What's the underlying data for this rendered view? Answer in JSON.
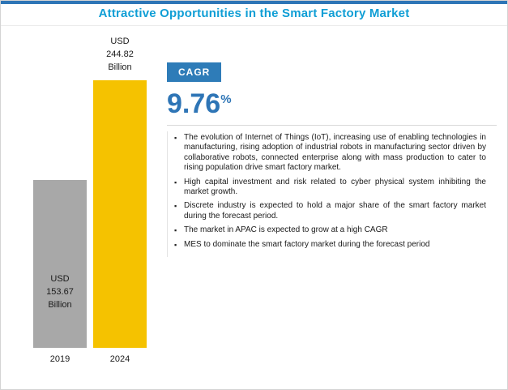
{
  "title": "Attractive Opportunities in the Smart Factory Market",
  "accent_colors": {
    "title": "#0f9ed5",
    "top_strip": "#2e75b6",
    "cagr_box_bg": "#2e7cb8",
    "cagr_value": "#2e75b6",
    "bar_2019": "#a8a8a8",
    "bar_2024": "#f5c200"
  },
  "chart_data": {
    "type": "bar",
    "categories": [
      "2019",
      "2024"
    ],
    "values": [
      153.67,
      244.82
    ],
    "unit": "USD Billion",
    "bar_labels": [
      "USD\n153.67\nBillion",
      "USD\n244.82\nBillion"
    ],
    "colors": [
      "#a8a8a8",
      "#f5c200"
    ],
    "ylim": [
      0,
      244.82
    ],
    "grid": false,
    "legend": false
  },
  "cagr": {
    "label": "CAGR",
    "value": "9.76",
    "suffix": "%"
  },
  "bullets": [
    "The evolution of Internet of Things (IoT), increasing use of enabling technologies in manufacturing, rising adoption of industrial robots in manufacturing sector driven by collaborative robots, connected enterprise along with mass production to cater to rising population drive smart factory market.",
    "High capital investment and risk related to cyber physical system inhibiting the market growth.",
    "Discrete industry is expected to hold a major share of the smart factory market during the forecast period.",
    "The market in APAC is expected to grow at a high CAGR",
    "MES to dominate the smart factory market during the forecast period"
  ]
}
